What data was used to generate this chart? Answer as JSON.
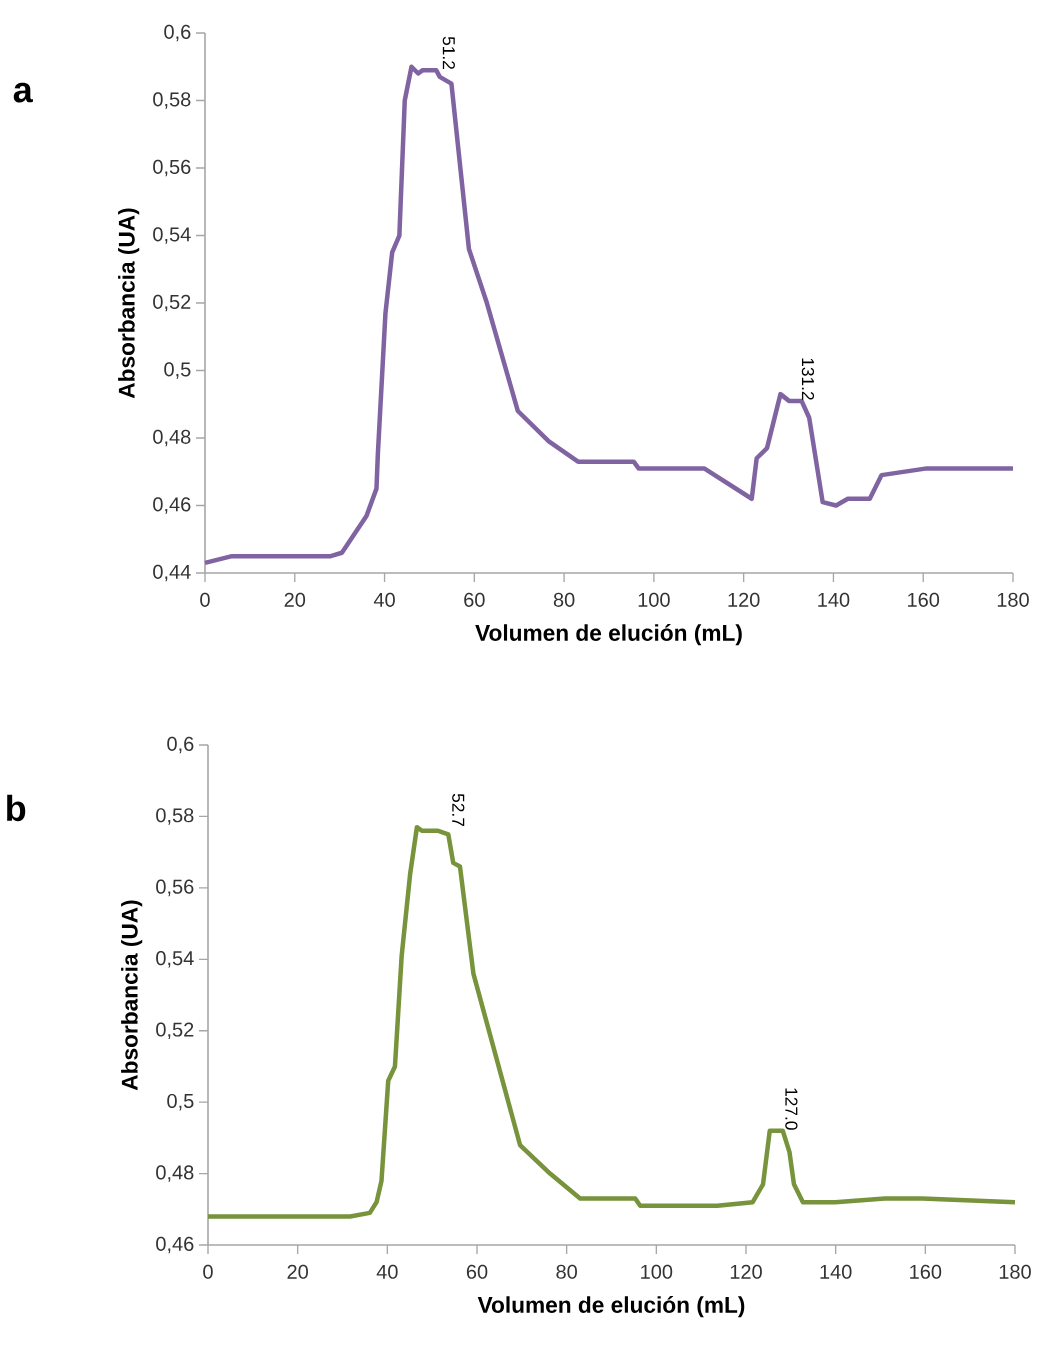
{
  "chart_data": [
    {
      "type": "line",
      "title": "a",
      "xlabel": "Volumen de elución (mL)",
      "ylabel": "Absorbancia  (UA)",
      "marker": "none",
      "x": [
        0,
        6,
        28,
        30.5,
        36.0,
        38.2,
        38.5,
        40.2,
        41.7,
        43.3,
        44.5,
        46.0,
        47.5,
        48.5,
        51.5,
        52.3,
        54.9,
        58.8,
        62.8,
        69.7,
        76.6,
        83.1,
        95.5,
        96.6,
        111.2,
        121.8,
        122.9,
        125.2,
        128.2,
        130.1,
        132.9,
        134.6,
        137.6,
        140.6,
        143.2,
        148.1,
        150.7,
        160.8,
        180
      ],
      "series": [
        {
          "color": "#8064a2",
          "values": [
            0.443,
            0.445,
            0.445,
            0.446,
            0.457,
            0.465,
            0.475,
            0.517,
            0.535,
            0.54,
            0.58,
            0.59,
            0.588,
            0.589,
            0.589,
            0.587,
            0.585,
            0.536,
            0.52,
            0.488,
            0.479,
            0.473,
            0.473,
            0.471,
            0.471,
            0.462,
            0.474,
            0.477,
            0.493,
            0.491,
            0.491,
            0.486,
            0.461,
            0.46,
            0.462,
            0.462,
            0.469,
            0.471,
            0.471
          ]
        }
      ],
      "xlim": [
        0,
        180
      ],
      "xticks": [
        0,
        20,
        40,
        60,
        80,
        100,
        120,
        140,
        160,
        180
      ],
      "ylim": [
        0.44,
        0.6
      ],
      "yticks": [
        {
          "value": 0.44,
          "label": "0,44"
        },
        {
          "value": 0.46,
          "label": "0,46"
        },
        {
          "value": 0.48,
          "label": "0,48"
        },
        {
          "value": 0.5,
          "label": "0,5"
        },
        {
          "value": 0.52,
          "label": "0,52"
        },
        {
          "value": 0.54,
          "label": "0,54"
        },
        {
          "value": 0.56,
          "label": "0,56"
        },
        {
          "value": 0.58,
          "label": "0,58"
        },
        {
          "value": 0.6,
          "label": "0,6"
        }
      ],
      "annotations": [
        {
          "text": "51.2",
          "x": 51.2,
          "y": 0.589
        },
        {
          "text": "131.2",
          "x": 131.2,
          "y": 0.491
        }
      ]
    },
    {
      "type": "line",
      "title": "b",
      "xlabel": "Volumen de elución (mL)",
      "ylabel": "Absorbancia  (UA)",
      "marker": "none",
      "x": [
        0,
        31.7,
        36.1,
        37.6,
        38.7,
        40.2,
        41.7,
        43.2,
        45.1,
        46.6,
        47.7,
        51.2,
        53.6,
        54.7,
        56.2,
        59.2,
        69.6,
        76.3,
        83.0,
        95.3,
        96.4,
        113.6,
        121.5,
        123.8,
        125.3,
        128.2,
        129.7,
        130.7,
        132.7,
        139.9,
        151,
        159.3,
        180
      ],
      "series": [
        {
          "color": "#77933c",
          "values": [
            0.468,
            0.468,
            0.469,
            0.472,
            0.478,
            0.506,
            0.51,
            0.541,
            0.564,
            0.577,
            0.576,
            0.576,
            0.575,
            0.567,
            0.566,
            0.536,
            0.488,
            0.48,
            0.473,
            0.473,
            0.471,
            0.471,
            0.472,
            0.477,
            0.492,
            0.492,
            0.486,
            0.477,
            0.472,
            0.472,
            0.473,
            0.473,
            0.472
          ]
        }
      ],
      "xlim": [
        0,
        180
      ],
      "xticks": [
        0,
        20,
        40,
        60,
        80,
        100,
        120,
        140,
        160,
        180
      ],
      "ylim": [
        0.46,
        0.6
      ],
      "yticks": [
        {
          "value": 0.46,
          "label": "0,46"
        },
        {
          "value": 0.48,
          "label": "0,48"
        },
        {
          "value": 0.5,
          "label": "0,5"
        },
        {
          "value": 0.52,
          "label": "0,52"
        },
        {
          "value": 0.54,
          "label": "0,54"
        },
        {
          "value": 0.56,
          "label": "0,56"
        },
        {
          "value": 0.58,
          "label": "0,58"
        },
        {
          "value": 0.6,
          "label": "0,6"
        }
      ],
      "annotations": [
        {
          "text": "52.7",
          "x": 52.7,
          "y": 0.577
        },
        {
          "text": "127.0",
          "x": 127.0,
          "y": 0.492
        }
      ]
    }
  ]
}
